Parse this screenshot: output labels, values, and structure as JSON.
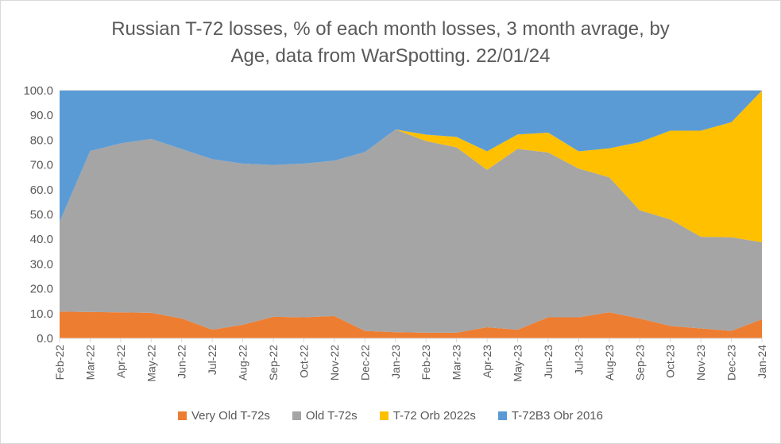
{
  "chart_data": {
    "type": "area",
    "stacked": true,
    "title_line1": "Russian T-72 losses, % of each month losses, 3 month avrage, by",
    "title_line2": "Age, data from WarSpotting. 22/01/24",
    "ylim": [
      0,
      100
    ],
    "yticks": [
      "0.0",
      "10.0",
      "20.0",
      "30.0",
      "40.0",
      "50.0",
      "60.0",
      "70.0",
      "80.0",
      "90.0",
      "100.0"
    ],
    "categories": [
      "Feb-22",
      "Mar-22",
      "Apr-22",
      "May-22",
      "Jun-22",
      "Jul-22",
      "Aug-22",
      "Sep-22",
      "Oct-22",
      "Nov-22",
      "Dec-22",
      "Jan-23",
      "Feb-23",
      "Mar-23",
      "Apr-23",
      "May-23",
      "Jun-23",
      "Jul-23",
      "Aug-23",
      "Sep-23",
      "Oct-23",
      "Nov-23",
      "Dec-23",
      "Jan-24"
    ],
    "series": [
      {
        "name": "Very Old T-72s",
        "color": "#ed7d31",
        "values": [
          10.8,
          10.6,
          10.5,
          10.3,
          8.0,
          3.5,
          5.5,
          8.7,
          8.5,
          9.0,
          3.0,
          2.5,
          2.3,
          2.3,
          4.5,
          3.5,
          8.5,
          8.5,
          10.5,
          8.0,
          5.0,
          4.0,
          3.0,
          7.7
        ]
      },
      {
        "name": "Old T-72s",
        "color": "#a5a5a5",
        "values": [
          36.2,
          65.0,
          68.2,
          70.2,
          68.4,
          68.8,
          65.0,
          61.3,
          62.0,
          62.7,
          72.2,
          81.8,
          77.3,
          74.8,
          63.5,
          73.0,
          66.5,
          60.0,
          54.5,
          43.7,
          43.0,
          37.0,
          37.8,
          31.1
        ]
      },
      {
        "name": "T-72 Orb 2022s",
        "color": "#ffc000",
        "values": [
          0,
          0,
          0,
          0,
          0,
          0,
          0,
          0,
          0,
          0,
          0,
          0,
          2.6,
          4.2,
          7.5,
          5.8,
          8.0,
          7.0,
          11.7,
          27.5,
          35.8,
          42.8,
          46.4,
          61.2
        ]
      },
      {
        "name": "T-72B3 Obr 2016",
        "color": "#5b9bd5",
        "values": [
          53.0,
          24.4,
          21.3,
          19.5,
          23.6,
          27.7,
          29.5,
          30.0,
          29.5,
          28.3,
          24.8,
          15.7,
          17.8,
          18.7,
          24.5,
          17.7,
          17.0,
          24.5,
          23.3,
          20.8,
          16.2,
          16.2,
          12.8,
          0
        ]
      }
    ]
  }
}
